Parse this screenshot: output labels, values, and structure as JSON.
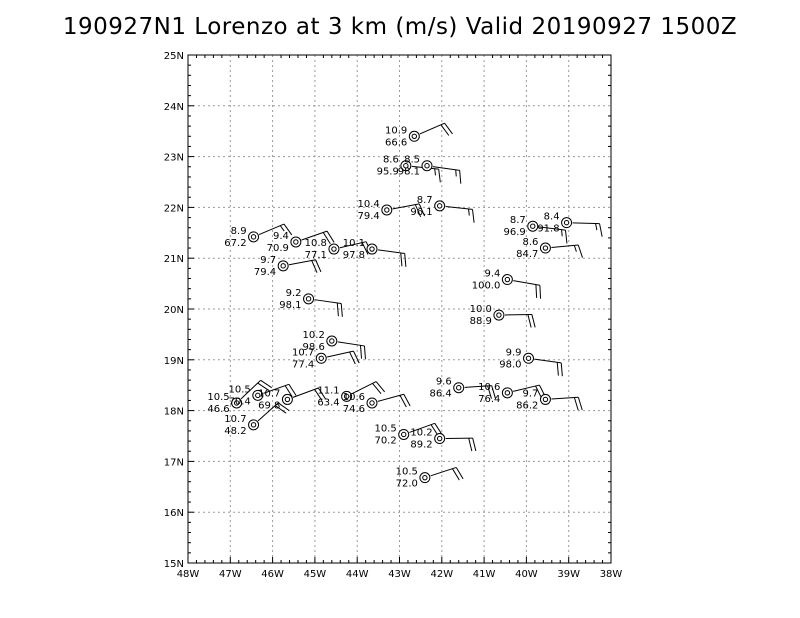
{
  "chart_data": {
    "type": "scatter",
    "title": "190927N1 Lorenzo at 3 km (m/s) Valid 20190927 1500Z",
    "xlabel": "",
    "ylabel": "",
    "xlim": [
      -48,
      -38
    ],
    "ylim": [
      15,
      25
    ],
    "grid": true,
    "x_ticks": [
      "48W",
      "47W",
      "46W",
      "45W",
      "44W",
      "43W",
      "42W",
      "41W",
      "40W",
      "39W",
      "38W"
    ],
    "y_ticks": [
      "15N",
      "16N",
      "17N",
      "18N",
      "19N",
      "20N",
      "21N",
      "22N",
      "23N",
      "24N",
      "25N"
    ],
    "series": [
      {
        "points": [
          {
            "lon": -42.65,
            "lat": 23.4,
            "speed": "10.9",
            "direction": "66.6"
          },
          {
            "lon": -42.85,
            "lat": 22.82,
            "speed": "8.6",
            "direction": "95.9"
          },
          {
            "lon": -42.35,
            "lat": 22.82,
            "speed": "8.5",
            "direction": "98.1"
          },
          {
            "lon": -43.3,
            "lat": 21.95,
            "speed": "10.4",
            "direction": "79.4"
          },
          {
            "lon": -42.05,
            "lat": 22.03,
            "speed": "8.7",
            "direction": "96.1"
          },
          {
            "lon": -46.45,
            "lat": 21.42,
            "speed": "8.9",
            "direction": "67.2"
          },
          {
            "lon": -45.45,
            "lat": 21.32,
            "speed": "9.4",
            "direction": "70.9"
          },
          {
            "lon": -44.55,
            "lat": 21.18,
            "speed": "10.8",
            "direction": "77.1"
          },
          {
            "lon": -43.65,
            "lat": 21.18,
            "speed": "10.1",
            "direction": "97.8"
          },
          {
            "lon": -45.75,
            "lat": 20.85,
            "speed": "9.7",
            "direction": "79.4"
          },
          {
            "lon": -45.15,
            "lat": 20.2,
            "speed": "9.2",
            "direction": "98.1"
          },
          {
            "lon": -39.85,
            "lat": 21.63,
            "speed": "8.7",
            "direction": "96.9"
          },
          {
            "lon": -39.05,
            "lat": 21.7,
            "speed": "8.4",
            "direction": "91.8"
          },
          {
            "lon": -39.55,
            "lat": 21.2,
            "speed": "8.6",
            "direction": "84.7"
          },
          {
            "lon": -40.45,
            "lat": 20.58,
            "speed": "9.4",
            "direction": "100.0"
          },
          {
            "lon": -40.65,
            "lat": 19.88,
            "speed": "10.0",
            "direction": "88.9"
          },
          {
            "lon": -44.6,
            "lat": 19.37,
            "speed": "10.2",
            "direction": "98.6"
          },
          {
            "lon": -44.85,
            "lat": 19.03,
            "speed": "10.7",
            "direction": "77.4"
          },
          {
            "lon": -39.95,
            "lat": 19.03,
            "speed": "9.9",
            "direction": "98.0"
          },
          {
            "lon": -41.6,
            "lat": 18.45,
            "speed": "9.6",
            "direction": "86.4"
          },
          {
            "lon": -40.45,
            "lat": 18.35,
            "speed": "10.6",
            "direction": "76.4"
          },
          {
            "lon": -39.55,
            "lat": 18.22,
            "speed": "9.7",
            "direction": "86.2"
          },
          {
            "lon": -46.35,
            "lat": 18.3,
            "speed": "10.5",
            "direction": "70.4"
          },
          {
            "lon": -45.65,
            "lat": 18.22,
            "speed": "10.7",
            "direction": "69.8"
          },
          {
            "lon": -46.85,
            "lat": 18.15,
            "speed": "10.5",
            "direction": "46.6"
          },
          {
            "lon": -44.25,
            "lat": 18.28,
            "speed": "11.1",
            "direction": "63.4"
          },
          {
            "lon": -43.65,
            "lat": 18.15,
            "speed": "10.6",
            "direction": "74.6"
          },
          {
            "lon": -46.45,
            "lat": 17.72,
            "speed": "10.7",
            "direction": "48.2"
          },
          {
            "lon": -42.9,
            "lat": 17.53,
            "speed": "10.5",
            "direction": "70.2"
          },
          {
            "lon": -42.05,
            "lat": 17.45,
            "speed": "10.2",
            "direction": "89.2"
          },
          {
            "lon": -42.4,
            "lat": 16.68,
            "speed": "10.5",
            "direction": "72.0"
          }
        ]
      }
    ]
  }
}
